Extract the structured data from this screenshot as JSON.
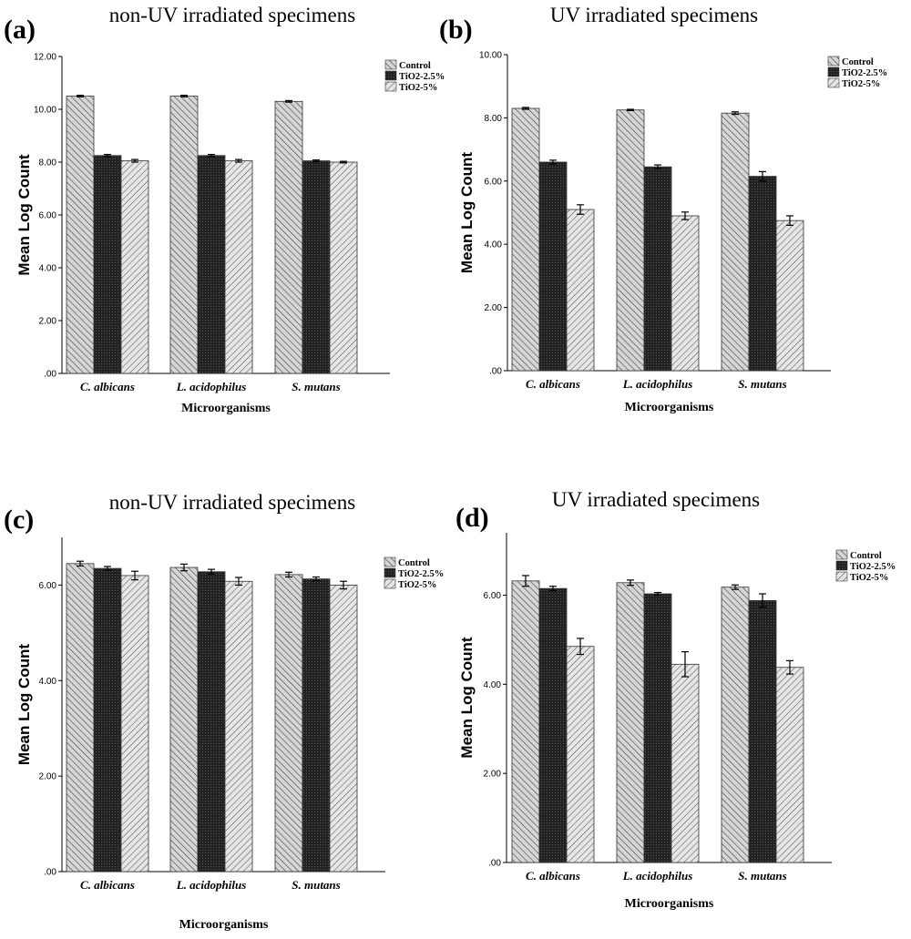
{
  "chart_data": [
    {
      "type": "bar",
      "panel_label": "(a)",
      "title": "non-UV irradiated  specimens",
      "xlabel": "Microorganisms",
      "ylabel": "Mean Log Count",
      "categories": [
        "C. albicans",
        "L. acidophilus",
        "S. mutans"
      ],
      "ylim": [
        0,
        12
      ],
      "yticks": [
        0,
        2,
        4,
        6,
        8,
        10,
        12
      ],
      "ytick_labels": [
        ".00",
        "2.00",
        "4.00",
        "6.00",
        "8.00",
        "10.00",
        "12.00"
      ],
      "legend_position": "top-right",
      "grid": false,
      "series": [
        {
          "name": "Control",
          "values": [
            10.5,
            10.5,
            10.3
          ],
          "errors": [
            0.03,
            0.03,
            0.03
          ]
        },
        {
          "name": "TiO2-2.5%",
          "values": [
            8.25,
            8.25,
            8.05
          ],
          "errors": [
            0.04,
            0.04,
            0.03
          ]
        },
        {
          "name": "TiO2-5%",
          "values": [
            8.05,
            8.05,
            8.0
          ],
          "errors": [
            0.05,
            0.05,
            0.03
          ]
        }
      ]
    },
    {
      "type": "bar",
      "panel_label": "(b)",
      "title": "UV irradiated specimens",
      "xlabel": "Microorganisms",
      "ylabel": "Mean Log Count",
      "categories": [
        "C. albicans",
        "L. acidophilus",
        "S. mutans"
      ],
      "ylim": [
        0,
        10
      ],
      "yticks": [
        0,
        2,
        4,
        6,
        8,
        10
      ],
      "ytick_labels": [
        ".00",
        "2.00",
        "4.00",
        "6.00",
        "8.00",
        "10.00"
      ],
      "legend_position": "top-right",
      "grid": false,
      "series": [
        {
          "name": "Control",
          "values": [
            8.3,
            8.25,
            8.15
          ],
          "errors": [
            0.03,
            0.02,
            0.04
          ]
        },
        {
          "name": "TiO2-2.5%",
          "values": [
            6.6,
            6.45,
            6.15
          ],
          "errors": [
            0.06,
            0.06,
            0.15
          ]
        },
        {
          "name": "TiO2-5%",
          "values": [
            5.1,
            4.9,
            4.75
          ],
          "errors": [
            0.15,
            0.12,
            0.15
          ]
        }
      ]
    },
    {
      "type": "bar",
      "panel_label": "(c)",
      "title": "non-UV irradiated  specimens",
      "xlabel": "Microorganisms",
      "ylabel": "Mean Log Count",
      "categories": [
        "C. albicans",
        "L. acidophilus",
        "S. mutans"
      ],
      "ylim": [
        0,
        7
      ],
      "yticks": [
        0,
        2,
        4,
        6
      ],
      "ytick_labels": [
        ".00",
        "2.00",
        "4.00",
        "6.00"
      ],
      "legend_position": "top-right",
      "grid": false,
      "series": [
        {
          "name": "Control",
          "values": [
            6.45,
            6.37,
            6.22
          ],
          "errors": [
            0.05,
            0.07,
            0.05
          ]
        },
        {
          "name": "TiO2-2.5%",
          "values": [
            6.35,
            6.28,
            6.13
          ],
          "errors": [
            0.04,
            0.05,
            0.04
          ]
        },
        {
          "name": "TiO2-5%",
          "values": [
            6.2,
            6.08,
            6.0
          ],
          "errors": [
            0.09,
            0.08,
            0.08
          ]
        }
      ]
    },
    {
      "type": "bar",
      "panel_label": "(d)",
      "title": "UV irradiated specimens",
      "xlabel": "Microorganisms",
      "ylabel": "Mean Log Count",
      "categories": [
        "C. albicans",
        "L. acidophilus",
        "S. mutans"
      ],
      "ylim": [
        0,
        7.4
      ],
      "yticks": [
        0,
        2,
        4,
        6
      ],
      "ytick_labels": [
        ".00",
        "2.00",
        "4.00",
        "6.00"
      ],
      "legend_position": "top-right",
      "grid": false,
      "series": [
        {
          "name": "Control",
          "values": [
            6.32,
            6.28,
            6.18
          ],
          "errors": [
            0.12,
            0.06,
            0.05
          ]
        },
        {
          "name": "TiO2-2.5%",
          "values": [
            6.15,
            6.03,
            5.88
          ],
          "errors": [
            0.05,
            0.03,
            0.15
          ]
        },
        {
          "name": "TiO2-5%",
          "values": [
            4.85,
            4.45,
            4.38
          ],
          "errors": [
            0.18,
            0.28,
            0.15
          ]
        }
      ]
    }
  ]
}
